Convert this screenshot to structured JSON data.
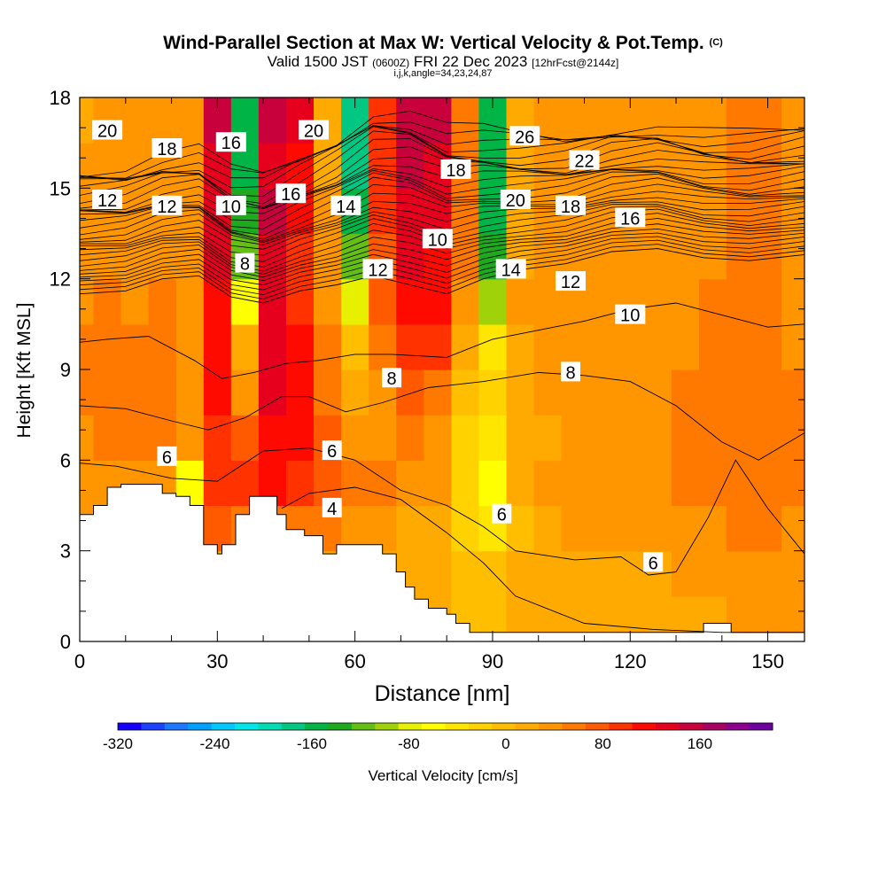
{
  "title": {
    "main": "Wind-Parallel Section at Max W: Vertical Velocity & Pot.Temp.",
    "copyright": "(C)",
    "valid_prefix": "Valid 1500 JST",
    "valid_utc": "(0600Z)",
    "valid_date": "FRI 22 Dec 2023",
    "forecast": "[12hrFcst@2144z]",
    "indices": "i,j,k,angle=34,23,24,87"
  },
  "chart_data": {
    "type": "heatmap",
    "xlabel": "Distance [nm]",
    "ylabel": "Height [Kft MSL]",
    "xlim": [
      0,
      158
    ],
    "ylim": [
      0,
      18
    ],
    "xticks": [
      0,
      30,
      60,
      90,
      120,
      150
    ],
    "yticks": [
      0,
      3,
      6,
      9,
      12,
      15,
      18
    ],
    "colorbar": {
      "label": "Vertical Velocity [cm/s]",
      "ticks": [
        -320,
        -240,
        -160,
        -80,
        0,
        80,
        160
      ],
      "range": [
        -320,
        220
      ],
      "colors": [
        "#1400ff",
        "#1e40ff",
        "#1e78ff",
        "#00a0ff",
        "#00c8ff",
        "#00e6e6",
        "#00dcb4",
        "#00c882",
        "#00b446",
        "#1eaa1e",
        "#64be14",
        "#a0d20a",
        "#e6f000",
        "#ffff00",
        "#ffe600",
        "#ffd200",
        "#ffbe00",
        "#ffaa00",
        "#ff9600",
        "#ff7800",
        "#ff5a00",
        "#ff3200",
        "#ff0a00",
        "#e6001e",
        "#c8003c",
        "#aa0064",
        "#8c008c",
        "#6e00a0"
      ]
    },
    "vertical_velocity_cells": {
      "columns_x": [
        0,
        6,
        12,
        18,
        24,
        30,
        36,
        42,
        48,
        54,
        60,
        66,
        72,
        78,
        84,
        90,
        96,
        102,
        108,
        114,
        120,
        126,
        132,
        138,
        144,
        150,
        156
      ],
      "rows_y": [
        0.75,
        2.25,
        3.75,
        5.25,
        6.75,
        8.25,
        9.75,
        11.25,
        12.75,
        14.25,
        15.75,
        17.25
      ],
      "values": [
        [
          10,
          10,
          10,
          10,
          10,
          10,
          10,
          10,
          10,
          10,
          10,
          10,
          10,
          10,
          0,
          0,
          10,
          10,
          10,
          10,
          10,
          10,
          20,
          20,
          30,
          30,
          30
        ],
        [
          20,
          20,
          20,
          20,
          20,
          20,
          20,
          20,
          20,
          20,
          20,
          20,
          10,
          10,
          0,
          -10,
          10,
          20,
          20,
          20,
          20,
          20,
          30,
          30,
          40,
          40,
          30
        ],
        [
          30,
          30,
          30,
          40,
          20,
          80,
          60,
          60,
          60,
          50,
          40,
          30,
          20,
          10,
          -20,
          -40,
          0,
          20,
          30,
          30,
          30,
          30,
          40,
          40,
          50,
          50,
          40
        ],
        [
          40,
          40,
          40,
          30,
          -60,
          100,
          90,
          110,
          100,
          70,
          60,
          50,
          40,
          30,
          -30,
          -60,
          10,
          30,
          30,
          30,
          30,
          40,
          50,
          50,
          60,
          60,
          50
        ],
        [
          40,
          50,
          50,
          50,
          30,
          100,
          80,
          120,
          120,
          70,
          40,
          40,
          50,
          40,
          -20,
          -40,
          10,
          20,
          30,
          30,
          30,
          40,
          50,
          50,
          60,
          60,
          50
        ],
        [
          50,
          60,
          50,
          60,
          40,
          110,
          40,
          130,
          110,
          60,
          20,
          40,
          70,
          60,
          0,
          -30,
          20,
          30,
          30,
          30,
          30,
          40,
          50,
          50,
          60,
          60,
          50
        ],
        [
          50,
          60,
          60,
          60,
          40,
          120,
          20,
          140,
          110,
          60,
          0,
          60,
          100,
          90,
          20,
          -40,
          20,
          30,
          30,
          30,
          30,
          40,
          40,
          50,
          50,
          50,
          40
        ],
        [
          40,
          50,
          40,
          50,
          40,
          120,
          -60,
          130,
          90,
          40,
          -80,
          70,
          120,
          110,
          40,
          -90,
          30,
          40,
          30,
          30,
          30,
          40,
          40,
          50,
          50,
          50,
          40
        ],
        [
          30,
          40,
          30,
          40,
          40,
          130,
          -120,
          140,
          100,
          40,
          -120,
          80,
          130,
          120,
          50,
          -130,
          20,
          30,
          30,
          30,
          30,
          40,
          40,
          40,
          50,
          50,
          40
        ],
        [
          30,
          30,
          30,
          30,
          40,
          140,
          -140,
          150,
          110,
          30,
          -150,
          90,
          140,
          130,
          60,
          -150,
          20,
          30,
          30,
          30,
          30,
          40,
          40,
          40,
          50,
          50,
          40
        ],
        [
          30,
          30,
          30,
          30,
          40,
          140,
          -160,
          140,
          120,
          20,
          -170,
          100,
          150,
          140,
          60,
          -160,
          20,
          30,
          30,
          30,
          30,
          40,
          40,
          40,
          50,
          50,
          40
        ],
        [
          20,
          30,
          30,
          30,
          40,
          150,
          -160,
          150,
          130,
          20,
          -180,
          100,
          150,
          150,
          60,
          -150,
          20,
          30,
          30,
          30,
          30,
          40,
          40,
          40,
          50,
          50,
          40
        ]
      ]
    },
    "terrain": {
      "x": [
        0,
        3,
        3,
        6,
        6,
        9,
        9,
        18,
        18,
        21,
        21,
        24,
        24,
        27,
        27,
        30,
        30,
        31,
        31,
        34,
        34,
        37,
        37,
        43,
        43,
        45,
        45,
        49,
        49,
        53,
        53,
        56,
        56,
        66,
        66,
        69,
        69,
        71,
        71,
        73,
        73,
        76,
        76,
        80,
        80,
        82,
        82,
        85,
        85,
        88,
        88,
        90,
        90,
        96,
        96,
        136,
        136,
        142,
        142,
        158
      ],
      "y": [
        4.2,
        4.2,
        4.5,
        4.5,
        5.1,
        5.1,
        5.2,
        5.2,
        4.9,
        4.9,
        4.8,
        4.8,
        4.5,
        4.5,
        3.2,
        3.2,
        2.9,
        2.9,
        3.2,
        3.2,
        4.2,
        4.2,
        4.8,
        4.8,
        4.2,
        4.2,
        3.7,
        3.7,
        3.5,
        3.5,
        2.9,
        2.9,
        3.2,
        3.2,
        2.9,
        2.9,
        2.3,
        2.3,
        1.8,
        1.8,
        1.4,
        1.4,
        1.1,
        1.1,
        0.9,
        0.9,
        0.6,
        0.6,
        0.3,
        0.3,
        0.3,
        0.3,
        0.3,
        0.3,
        0.3,
        0.3,
        0.6,
        0.6,
        0.3,
        0.3
      ]
    },
    "theta_contours": [
      {
        "label": "4",
        "x": [
          44,
          50,
          60,
          70,
          80,
          88,
          95,
          110,
          125,
          140,
          158
        ],
        "y": [
          4.4,
          4.9,
          5.1,
          4.7,
          3.6,
          2.6,
          1.5,
          0.6,
          0.4,
          0.3,
          0.3
        ]
      },
      {
        "label": "6",
        "x": [
          0,
          8,
          20,
          30,
          40,
          50,
          60,
          70,
          80,
          88,
          95,
          108,
          118,
          124,
          130,
          137,
          143,
          150,
          158
        ],
        "y": [
          5.9,
          5.8,
          5.4,
          5.3,
          6.3,
          6.4,
          6.0,
          5.0,
          4.5,
          3.8,
          3.0,
          2.7,
          2.8,
          2.2,
          2.3,
          4.1,
          6.0,
          4.4,
          2.9
        ]
      },
      {
        "label": "8",
        "x": [
          0,
          10,
          20,
          28,
          36,
          44,
          50,
          58,
          66,
          76,
          88,
          100,
          110,
          120,
          130,
          140,
          148,
          158
        ],
        "y": [
          7.8,
          7.7,
          7.3,
          7.0,
          7.4,
          8.1,
          8.1,
          7.6,
          7.9,
          8.4,
          8.6,
          8.9,
          8.8,
          8.6,
          7.8,
          6.6,
          6.0,
          6.9
        ]
      },
      {
        "label": "10",
        "x": [
          0,
          6,
          15,
          25,
          31,
          38,
          45,
          52,
          60,
          68,
          80,
          90,
          100,
          110,
          120,
          130,
          140,
          150,
          158
        ],
        "y": [
          9.9,
          10.0,
          10.1,
          9.3,
          8.7,
          8.9,
          9.2,
          9.3,
          9.5,
          9.5,
          9.4,
          10.0,
          10.3,
          10.6,
          11.0,
          11.2,
          10.8,
          10.4,
          10.5
        ]
      },
      {
        "label": "12",
        "x": [
          0,
          10,
          18,
          26,
          33,
          40,
          48,
          56,
          64,
          72,
          80,
          88,
          96,
          106,
          116,
          126,
          136,
          146,
          158
        ],
        "y": [
          11.5,
          11.6,
          12.0,
          12.1,
          11.4,
          11.2,
          11.6,
          11.8,
          12.1,
          11.8,
          11.5,
          12.0,
          12.3,
          12.5,
          12.9,
          13.0,
          12.7,
          12.6,
          12.8
        ]
      }
    ],
    "theta_labels": [
      {
        "text": "20",
        "x": 6,
        "y": 16.9
      },
      {
        "text": "18",
        "x": 19,
        "y": 16.3
      },
      {
        "text": "16",
        "x": 33,
        "y": 16.5
      },
      {
        "text": "20",
        "x": 51,
        "y": 16.9
      },
      {
        "text": "26",
        "x": 97,
        "y": 16.7
      },
      {
        "text": "22",
        "x": 110,
        "y": 15.9
      },
      {
        "text": "18",
        "x": 82,
        "y": 15.6
      },
      {
        "text": "16",
        "x": 46,
        "y": 14.8
      },
      {
        "text": "12",
        "x": 6,
        "y": 14.6
      },
      {
        "text": "12",
        "x": 19,
        "y": 14.4
      },
      {
        "text": "10",
        "x": 33,
        "y": 14.4
      },
      {
        "text": "14",
        "x": 58,
        "y": 14.4
      },
      {
        "text": "20",
        "x": 95,
        "y": 14.6
      },
      {
        "text": "18",
        "x": 107,
        "y": 14.4
      },
      {
        "text": "16",
        "x": 120,
        "y": 14.0
      },
      {
        "text": "10",
        "x": 78,
        "y": 13.3
      },
      {
        "text": "8",
        "x": 36,
        "y": 12.5
      },
      {
        "text": "12",
        "x": 65,
        "y": 12.3
      },
      {
        "text": "14",
        "x": 94,
        "y": 12.3
      },
      {
        "text": "12",
        "x": 107,
        "y": 11.9
      },
      {
        "text": "10",
        "x": 120,
        "y": 10.8
      },
      {
        "text": "8",
        "x": 68,
        "y": 8.7
      },
      {
        "text": "8",
        "x": 107,
        "y": 8.9
      },
      {
        "text": "6",
        "x": 19,
        "y": 6.1
      },
      {
        "text": "6",
        "x": 55,
        "y": 6.3
      },
      {
        "text": "4",
        "x": 55,
        "y": 4.4
      },
      {
        "text": "6",
        "x": 92,
        "y": 4.2
      },
      {
        "text": "6",
        "x": 125,
        "y": 2.6
      }
    ]
  }
}
